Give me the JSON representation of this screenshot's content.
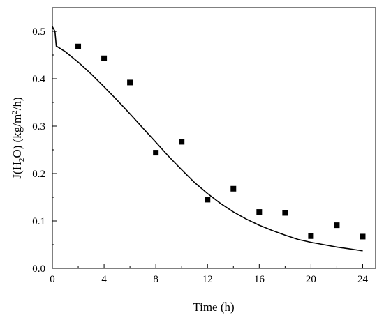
{
  "chart_data": {
    "type": "scatter",
    "xlabel": "Time (h)",
    "ylabel_parts": [
      "J(H",
      "2",
      "O) (kg/m",
      "2",
      "/h)"
    ],
    "xlim": [
      0,
      25
    ],
    "ylim": [
      0,
      0.55
    ],
    "xticks": [
      0,
      4,
      8,
      12,
      16,
      20,
      24
    ],
    "yticks": [
      0.0,
      0.1,
      0.2,
      0.3,
      0.4,
      0.5
    ],
    "xtick_labels": [
      "0",
      "4",
      "8",
      "12",
      "16",
      "20",
      "24"
    ],
    "ytick_labels": [
      "0.0",
      "0.1",
      "0.2",
      "0.3",
      "0.4",
      "0.5"
    ],
    "grid": false,
    "series": [
      {
        "kind": "points",
        "marker": "square",
        "color": "#000000",
        "x": [
          2,
          4,
          6,
          8,
          10,
          12,
          14,
          16,
          18,
          20,
          22,
          24
        ],
        "y": [
          0.468,
          0.443,
          0.392,
          0.244,
          0.267,
          0.145,
          0.168,
          0.119,
          0.117,
          0.068,
          0.091,
          0.067
        ]
      },
      {
        "kind": "line",
        "color": "#000000",
        "x": [
          0,
          0.2,
          0.3,
          1,
          2,
          3,
          4,
          5,
          6,
          7,
          8,
          9,
          10,
          11,
          12,
          13,
          14,
          15,
          16,
          17,
          18,
          19,
          20,
          21,
          22,
          23,
          24
        ],
        "y": [
          0.51,
          0.5,
          0.469,
          0.457,
          0.435,
          0.41,
          0.383,
          0.355,
          0.326,
          0.296,
          0.266,
          0.236,
          0.208,
          0.181,
          0.158,
          0.137,
          0.119,
          0.104,
          0.091,
          0.08,
          0.07,
          0.061,
          0.055,
          0.05,
          0.045,
          0.041,
          0.037
        ]
      }
    ]
  }
}
